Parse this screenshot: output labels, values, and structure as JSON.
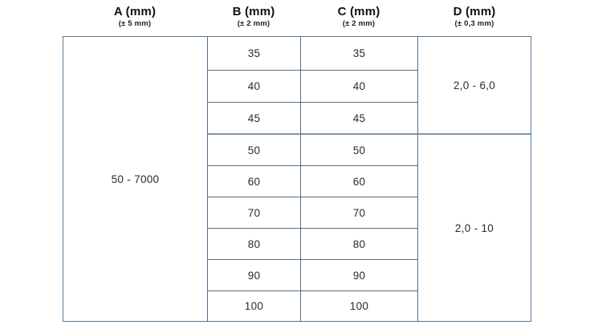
{
  "table": {
    "columns": [
      {
        "label": "A (mm)",
        "tolerance": "(± 5 mm)"
      },
      {
        "label": "B (mm)",
        "tolerance": "(± 2 mm)"
      },
      {
        "label": "C (mm)",
        "tolerance": "(± 2 mm)"
      },
      {
        "label": "D (mm)",
        "tolerance": "(± 0,3 mm)"
      }
    ],
    "a_value": "50 - 7000",
    "rows": [
      {
        "b": "35",
        "c": "35"
      },
      {
        "b": "40",
        "c": "40"
      },
      {
        "b": "45",
        "c": "45"
      },
      {
        "b": "50",
        "c": "50"
      },
      {
        "b": "60",
        "c": "60"
      },
      {
        "b": "70",
        "c": "70"
      },
      {
        "b": "80",
        "c": "80"
      },
      {
        "b": "90",
        "c": "90"
      },
      {
        "b": "100",
        "c": "100"
      }
    ],
    "d_groups": [
      {
        "value": "2,0 - 6,0",
        "span_rows": 3
      },
      {
        "value": "2,0 - 10",
        "span_rows": 6
      }
    ]
  },
  "colors": {
    "grid_line": "#4e7089",
    "group_divider": "#7d98ab",
    "outer_border": "#577a93",
    "text": "#2b2b2b"
  }
}
